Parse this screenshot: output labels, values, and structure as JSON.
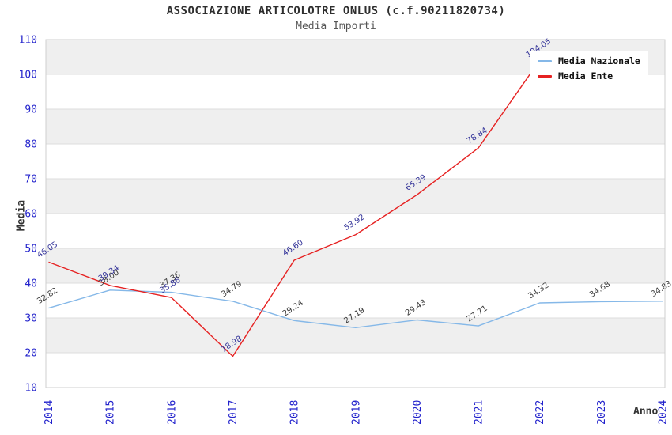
{
  "title": "ASSOCIAZIONE ARTICOLOTRE ONLUS (c.f.90211820734)",
  "subtitle": "Media Importi",
  "axes": {
    "y_label": "Media",
    "x_label": "Anno"
  },
  "legend": {
    "items": [
      {
        "label": "Media Nazionale",
        "color": "#85B8E8"
      },
      {
        "label": "Media Ente",
        "color": "#E62222"
      }
    ]
  },
  "chart_data": {
    "type": "line",
    "title": "ASSOCIAZIONE ARTICOLOTRE ONLUS (c.f.90211820734)",
    "subtitle": "Media Importi",
    "xlabel": "Anno",
    "ylabel": "Media",
    "x": [
      2014,
      2015,
      2016,
      2017,
      2018,
      2019,
      2020,
      2021,
      2022,
      2023,
      2024
    ],
    "y_ticks": [
      10,
      20,
      30,
      40,
      50,
      60,
      70,
      80,
      90,
      100,
      110
    ],
    "ylim": [
      10,
      110
    ],
    "grid": true,
    "legend_position": "top-right",
    "plot_band_colors": [
      "#efefef",
      "#ffffff"
    ],
    "gridline_color": "#dcdcdc",
    "border_color": "#cfcfcf",
    "tick_label_color": "#2222cc",
    "series": [
      {
        "name": "Media Nazionale",
        "color": "#85B8E8",
        "label_color": "#3b3b3b",
        "values": [
          32.82,
          38.0,
          37.36,
          34.79,
          29.24,
          27.19,
          29.43,
          27.71,
          34.32,
          34.68,
          34.83
        ]
      },
      {
        "name": "Media Ente",
        "color": "#E62222",
        "label_color": "#333399",
        "values": [
          46.05,
          39.34,
          35.86,
          18.98,
          46.6,
          53.92,
          65.39,
          78.84,
          104.05,
          null,
          null
        ]
      }
    ]
  }
}
